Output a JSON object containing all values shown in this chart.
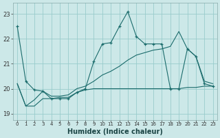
{
  "xlabel": "Humidex (Indice chaleur)",
  "bg_color": "#cce8e8",
  "grid_color": "#99cccc",
  "line_color": "#1a6b6b",
  "y_ticks": [
    19,
    20,
    21,
    22,
    23
  ],
  "xlim": [
    -0.5,
    23.5
  ],
  "ylim": [
    18.75,
    23.45
  ],
  "figsize": [
    3.2,
    2.0
  ],
  "series1_x": [
    0,
    1,
    2,
    3,
    4,
    5,
    6,
    7,
    8,
    9,
    10,
    11,
    12,
    13,
    14,
    15,
    16,
    17,
    18,
    19,
    20,
    21,
    22,
    23
  ],
  "series1_y": [
    22.5,
    20.3,
    19.95,
    19.9,
    19.6,
    19.6,
    19.6,
    19.85,
    20.0,
    21.1,
    21.8,
    21.85,
    22.5,
    23.1,
    22.1,
    21.8,
    21.8,
    21.8,
    20.0,
    20.0,
    21.6,
    21.3,
    20.2,
    20.1
  ],
  "series2_x": [
    0,
    1,
    2,
    3,
    4,
    5,
    6,
    7,
    8,
    9,
    10,
    11,
    12,
    13,
    14,
    15,
    16,
    17,
    18,
    19,
    20,
    21,
    22,
    23
  ],
  "series2_y": [
    20.2,
    19.3,
    19.3,
    19.6,
    19.6,
    19.65,
    19.65,
    19.85,
    19.95,
    20.0,
    20.0,
    20.0,
    20.0,
    20.0,
    20.0,
    20.0,
    20.0,
    20.0,
    20.0,
    20.0,
    20.05,
    20.05,
    20.1,
    20.1
  ],
  "series3_x": [
    0,
    1,
    2,
    3,
    4,
    5,
    6,
    7,
    8,
    9,
    10,
    11,
    12,
    13,
    14,
    15,
    16,
    17,
    18,
    19,
    20,
    21,
    22,
    23
  ],
  "series3_y": [
    20.2,
    19.3,
    19.55,
    19.9,
    19.7,
    19.7,
    19.75,
    20.0,
    20.1,
    20.3,
    20.55,
    20.7,
    20.9,
    21.15,
    21.35,
    21.45,
    21.55,
    21.6,
    21.7,
    22.3,
    21.6,
    21.3,
    20.3,
    20.2
  ]
}
